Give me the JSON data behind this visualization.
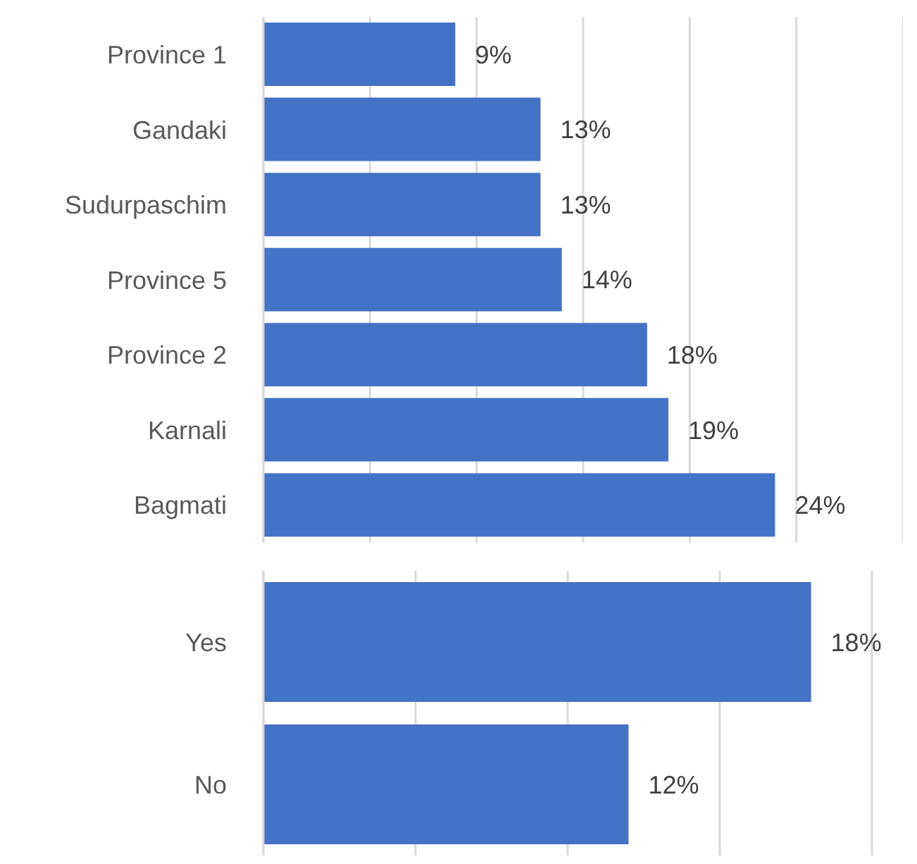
{
  "chart_data": [
    {
      "type": "bar",
      "orientation": "horizontal",
      "categories": [
        "Province 1",
        "Gandaki",
        "Sudurpaschim",
        "Province 5",
        "Province 2",
        "Karnali",
        "Bagmati"
      ],
      "values": [
        9,
        13,
        13,
        14,
        18,
        19,
        24
      ],
      "value_labels": [
        "9%",
        "13%",
        "13%",
        "14%",
        "18%",
        "19%",
        "24%"
      ],
      "color": "#4472c4",
      "xlim": [
        0,
        30
      ],
      "xticks": [
        {
          "value": 0,
          "label": null
        },
        {
          "value": 5,
          "label": null
        },
        {
          "value": 10,
          "label": null
        },
        {
          "value": 15,
          "label": null
        },
        {
          "value": 20,
          "label": null
        },
        {
          "value": 25,
          "label": null
        },
        {
          "value": 30,
          "label": null
        }
      ],
      "grid": "x",
      "tick_labels": "y"
    },
    {
      "type": "bar",
      "orientation": "horizontal",
      "categories": [
        "Yes",
        "No"
      ],
      "values": [
        18,
        12
      ],
      "value_labels": [
        "18%",
        "12%"
      ],
      "color": "#4472c4",
      "xlim": [
        0,
        20
      ],
      "xticks": [
        {
          "value": 0,
          "label": null
        },
        {
          "value": 5,
          "label": null
        },
        {
          "value": 10,
          "label": null
        },
        {
          "value": 15,
          "label": null
        },
        {
          "value": 20,
          "label": null
        }
      ],
      "grid": "x",
      "tick_labels": "y"
    }
  ]
}
